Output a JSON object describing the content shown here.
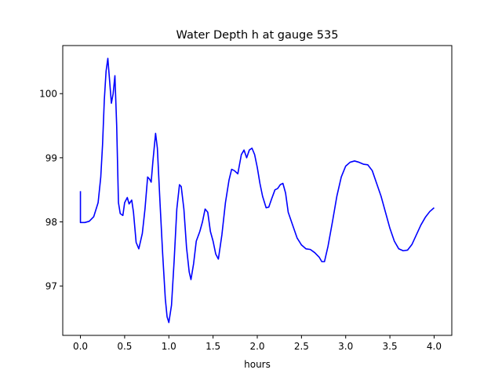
{
  "chart_data": {
    "type": "line",
    "title": "Water Depth h at gauge 535",
    "xlabel": "hours",
    "ylabel": "",
    "xlim": [
      -0.2,
      4.2
    ],
    "ylim": [
      96.23,
      100.75
    ],
    "x_ticks": [
      0.0,
      0.5,
      1.0,
      1.5,
      2.0,
      2.5,
      3.0,
      3.5,
      4.0
    ],
    "x_tick_labels": [
      "0.0",
      "0.5",
      "1.0",
      "1.5",
      "2.0",
      "2.5",
      "3.0",
      "3.5",
      "4.0"
    ],
    "y_ticks": [
      97,
      98,
      99,
      100
    ],
    "y_tick_labels": [
      "97",
      "98",
      "99",
      "100"
    ],
    "grid": false,
    "series": [
      {
        "color": "#0000ff",
        "points": [
          [
            0.0,
            98.48
          ],
          [
            0.0,
            97.99
          ],
          [
            0.05,
            97.99
          ],
          [
            0.1,
            98.01
          ],
          [
            0.15,
            98.08
          ],
          [
            0.2,
            98.3
          ],
          [
            0.23,
            98.7
          ],
          [
            0.25,
            99.2
          ],
          [
            0.27,
            99.9
          ],
          [
            0.29,
            100.35
          ],
          [
            0.31,
            100.55
          ],
          [
            0.33,
            100.2
          ],
          [
            0.35,
            99.85
          ],
          [
            0.37,
            100.0
          ],
          [
            0.39,
            100.28
          ],
          [
            0.41,
            99.5
          ],
          [
            0.43,
            98.3
          ],
          [
            0.45,
            98.13
          ],
          [
            0.48,
            98.1
          ],
          [
            0.5,
            98.3
          ],
          [
            0.53,
            98.38
          ],
          [
            0.55,
            98.28
          ],
          [
            0.58,
            98.34
          ],
          [
            0.6,
            98.15
          ],
          [
            0.63,
            97.68
          ],
          [
            0.66,
            97.58
          ],
          [
            0.7,
            97.82
          ],
          [
            0.73,
            98.2
          ],
          [
            0.76,
            98.7
          ],
          [
            0.78,
            98.67
          ],
          [
            0.8,
            98.62
          ],
          [
            0.82,
            98.95
          ],
          [
            0.85,
            99.38
          ],
          [
            0.87,
            99.15
          ],
          [
            0.9,
            98.3
          ],
          [
            0.93,
            97.5
          ],
          [
            0.96,
            96.8
          ],
          [
            0.98,
            96.52
          ],
          [
            1.0,
            96.43
          ],
          [
            1.03,
            96.7
          ],
          [
            1.06,
            97.4
          ],
          [
            1.09,
            98.2
          ],
          [
            1.12,
            98.58
          ],
          [
            1.14,
            98.55
          ],
          [
            1.17,
            98.2
          ],
          [
            1.2,
            97.6
          ],
          [
            1.23,
            97.22
          ],
          [
            1.25,
            97.1
          ],
          [
            1.28,
            97.35
          ],
          [
            1.31,
            97.7
          ],
          [
            1.35,
            97.85
          ],
          [
            1.38,
            98.0
          ],
          [
            1.41,
            98.2
          ],
          [
            1.44,
            98.15
          ],
          [
            1.47,
            97.85
          ],
          [
            1.5,
            97.7
          ],
          [
            1.53,
            97.5
          ],
          [
            1.56,
            97.42
          ],
          [
            1.6,
            97.8
          ],
          [
            1.64,
            98.3
          ],
          [
            1.68,
            98.65
          ],
          [
            1.71,
            98.82
          ],
          [
            1.74,
            98.8
          ],
          [
            1.78,
            98.75
          ],
          [
            1.82,
            99.05
          ],
          [
            1.85,
            99.12
          ],
          [
            1.88,
            99.0
          ],
          [
            1.91,
            99.12
          ],
          [
            1.94,
            99.15
          ],
          [
            1.97,
            99.05
          ],
          [
            2.0,
            98.85
          ],
          [
            2.03,
            98.6
          ],
          [
            2.06,
            98.4
          ],
          [
            2.1,
            98.22
          ],
          [
            2.13,
            98.23
          ],
          [
            2.16,
            98.35
          ],
          [
            2.2,
            98.5
          ],
          [
            2.23,
            98.52
          ],
          [
            2.26,
            98.58
          ],
          [
            2.29,
            98.6
          ],
          [
            2.32,
            98.45
          ],
          [
            2.35,
            98.15
          ],
          [
            2.4,
            97.95
          ],
          [
            2.45,
            97.75
          ],
          [
            2.5,
            97.64
          ],
          [
            2.55,
            97.58
          ],
          [
            2.6,
            97.57
          ],
          [
            2.65,
            97.52
          ],
          [
            2.7,
            97.45
          ],
          [
            2.73,
            97.38
          ],
          [
            2.76,
            97.38
          ],
          [
            2.8,
            97.62
          ],
          [
            2.85,
            98.0
          ],
          [
            2.9,
            98.4
          ],
          [
            2.95,
            98.7
          ],
          [
            3.0,
            98.87
          ],
          [
            3.05,
            98.93
          ],
          [
            3.1,
            98.95
          ],
          [
            3.15,
            98.93
          ],
          [
            3.2,
            98.9
          ],
          [
            3.25,
            98.89
          ],
          [
            3.3,
            98.8
          ],
          [
            3.35,
            98.6
          ],
          [
            3.4,
            98.4
          ],
          [
            3.45,
            98.15
          ],
          [
            3.5,
            97.9
          ],
          [
            3.55,
            97.7
          ],
          [
            3.6,
            97.58
          ],
          [
            3.65,
            97.55
          ],
          [
            3.7,
            97.56
          ],
          [
            3.75,
            97.65
          ],
          [
            3.8,
            97.8
          ],
          [
            3.85,
            97.95
          ],
          [
            3.9,
            98.07
          ],
          [
            3.95,
            98.16
          ],
          [
            4.0,
            98.22
          ]
        ]
      }
    ]
  }
}
